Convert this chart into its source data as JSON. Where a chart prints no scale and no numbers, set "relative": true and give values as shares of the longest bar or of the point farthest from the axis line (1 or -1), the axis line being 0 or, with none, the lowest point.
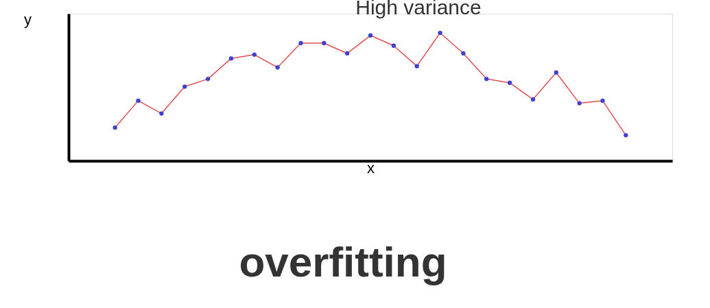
{
  "chart_data": {
    "type": "line",
    "title": "High variance",
    "xlabel": "x",
    "ylabel": "y",
    "relative": true,
    "tick_labels": false,
    "grid": false,
    "marker": "circle",
    "line_style": "solid",
    "annotations": [
      "overfitting"
    ],
    "categories": [
      null,
      null,
      null,
      null,
      null,
      null,
      null,
      null,
      null,
      null,
      null,
      null,
      null,
      null,
      null,
      null,
      null,
      null,
      null,
      null,
      null,
      null,
      null
    ],
    "series": [
      {
        "color": "#e05050",
        "colors": [
          "#4040d0",
          "#4040d0",
          "#4040d0",
          "#4040d0",
          "#4040d0",
          "#4040d0",
          "#4040d0",
          "#4040d0",
          "#4040d0",
          "#4040d0",
          "#4040d0",
          "#4040d0",
          "#4040d0",
          "#4040d0",
          "#4040d0",
          "#4040d0",
          "#4040d0",
          "#4040d0",
          "#4040d0",
          "#4040d0",
          "#4040d0",
          "#4040d0",
          "#4040d0"
        ],
        "values": [
          0.26,
          0.47,
          0.37,
          0.58,
          0.64,
          0.8,
          0.83,
          0.73,
          0.92,
          0.92,
          0.84,
          0.98,
          0.9,
          0.74,
          1,
          0.84,
          0.64,
          0.61,
          0.48,
          0.69,
          0.45,
          0.47,
          0.2
        ]
      }
    ]
  }
}
